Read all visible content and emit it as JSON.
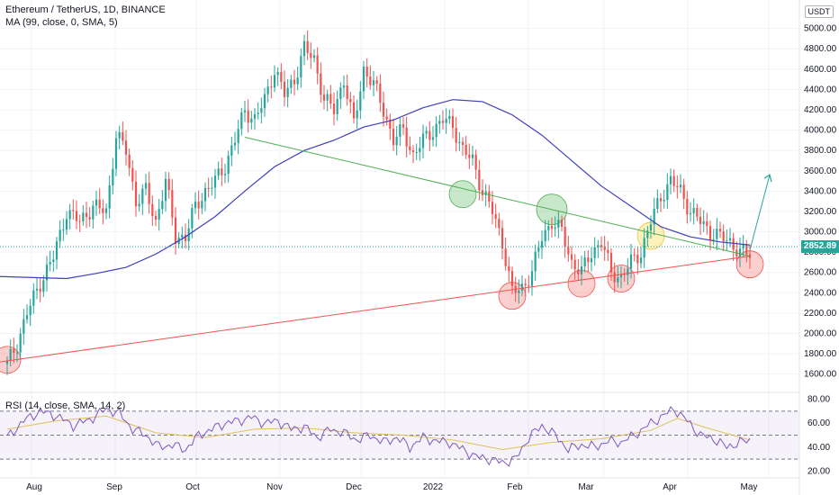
{
  "header": {
    "title": "Ethereum / TetherUS, 1D, BINANCE",
    "indicator": "MA (99, close, 0, SMA, 5)"
  },
  "rsi_header": "RSI (14, close, SMA, 14, 2)",
  "currency_badge": "USDT",
  "last_price": "2852.89",
  "colors": {
    "up": "#26a69a",
    "down": "#ef5350",
    "ma": "#3f3fbf",
    "support": "#ef5350",
    "resistance": "#4caf50",
    "projection": "#26a69a",
    "rsi": "#7e57c2",
    "rsi_ma": "#e0c05a"
  },
  "chart_data": [
    {
      "type": "candlestick",
      "title": "Ethereum / TetherUS, 1D, BINANCE",
      "x_ticks": [
        "Aug",
        "Sep",
        "Oct",
        "Nov",
        "Dec",
        "2022",
        "Feb",
        "Mar",
        "Apr",
        "May"
      ],
      "y_ticks": [
        "1600.00",
        "1800.00",
        "2000.00",
        "2200.00",
        "2400.00",
        "2600.00",
        "2800.00",
        "3000.00",
        "3200.00",
        "3400.00",
        "3600.00",
        "3800.00",
        "4000.00",
        "4200.00",
        "4400.00",
        "4600.00",
        "4800.00",
        "5000.00"
      ],
      "ylim": [
        1420,
        5280
      ],
      "close_path": [
        [
          0,
          1700
        ],
        [
          3,
          1900
        ],
        [
          6,
          2200
        ],
        [
          10,
          2500
        ],
        [
          14,
          2750
        ],
        [
          18,
          3200
        ],
        [
          22,
          3100
        ],
        [
          26,
          3250
        ],
        [
          30,
          3200
        ],
        [
          33,
          3950
        ],
        [
          36,
          3800
        ],
        [
          39,
          3300
        ],
        [
          42,
          3400
        ],
        [
          45,
          3100
        ],
        [
          48,
          3500
        ],
        [
          51,
          2950
        ],
        [
          54,
          2950
        ],
        [
          57,
          3250
        ],
        [
          60,
          3400
        ],
        [
          63,
          3500
        ],
        [
          66,
          3650
        ],
        [
          69,
          3900
        ],
        [
          72,
          4200
        ],
        [
          75,
          4100
        ],
        [
          78,
          4300
        ],
        [
          81,
          4600
        ],
        [
          84,
          4350
        ],
        [
          87,
          4500
        ],
        [
          90,
          4800
        ],
        [
          93,
          4700
        ],
        [
          96,
          4300
        ],
        [
          99,
          4200
        ],
        [
          102,
          4500
        ],
        [
          105,
          4050
        ],
        [
          108,
          4600
        ],
        [
          111,
          4450
        ],
        [
          114,
          4200
        ],
        [
          117,
          3900
        ],
        [
          120,
          4000
        ],
        [
          123,
          3750
        ],
        [
          126,
          3900
        ],
        [
          129,
          4000
        ],
        [
          132,
          4100
        ],
        [
          135,
          4050
        ],
        [
          138,
          3800
        ],
        [
          141,
          3700
        ],
        [
          144,
          3400
        ],
        [
          147,
          3200
        ],
        [
          150,
          2900
        ],
        [
          153,
          2400
        ],
        [
          156,
          2450
        ],
        [
          159,
          2600
        ],
        [
          162,
          2950
        ],
        [
          165,
          3100
        ],
        [
          168,
          3000
        ],
        [
          171,
          2700
        ],
        [
          174,
          2600
        ],
        [
          177,
          2800
        ],
        [
          180,
          2900
        ],
        [
          183,
          2600
        ],
        [
          186,
          2550
        ],
        [
          189,
          2700
        ],
        [
          192,
          2800
        ],
        [
          195,
          3100
        ],
        [
          198,
          3350
        ],
        [
          201,
          3500
        ],
        [
          204,
          3400
        ],
        [
          207,
          3200
        ],
        [
          210,
          3100
        ],
        [
          213,
          3000
        ],
        [
          216,
          2950
        ],
        [
          219,
          2900
        ],
        [
          222,
          2800
        ],
        [
          225,
          2780
        ]
      ],
      "ma_path": [
        [
          0,
          2560
        ],
        [
          18,
          2540
        ],
        [
          27,
          2590
        ],
        [
          36,
          2650
        ],
        [
          45,
          2780
        ],
        [
          54,
          2950
        ],
        [
          63,
          3150
        ],
        [
          72,
          3400
        ],
        [
          81,
          3640
        ],
        [
          90,
          3800
        ],
        [
          99,
          3900
        ],
        [
          108,
          4030
        ],
        [
          117,
          4100
        ],
        [
          126,
          4220
        ],
        [
          135,
          4300
        ],
        [
          144,
          4280
        ],
        [
          153,
          4150
        ],
        [
          162,
          3950
        ],
        [
          171,
          3700
        ],
        [
          180,
          3450
        ],
        [
          189,
          3250
        ],
        [
          198,
          3050
        ],
        [
          207,
          2950
        ],
        [
          216,
          2900
        ],
        [
          225,
          2870
        ]
      ],
      "trendlines": [
        {
          "name": "support",
          "from": [
            0,
            1720
          ],
          "to": [
            225,
            2760
          ]
        },
        {
          "name": "resistance",
          "from": [
            72,
            3930
          ],
          "to": [
            225,
            2760
          ]
        },
        {
          "name": "projection",
          "from": [
            225,
            2820
          ],
          "to": [
            231,
            3560
          ]
        }
      ],
      "markers": [
        {
          "day": 0,
          "price": 1740,
          "color": "red"
        },
        {
          "day": 153,
          "price": 2370,
          "color": "red"
        },
        {
          "day": 138,
          "price": 3370,
          "color": "green"
        },
        {
          "day": 165,
          "price": 3220,
          "color": "green"
        },
        {
          "day": 174,
          "price": 2490,
          "color": "red"
        },
        {
          "day": 186,
          "price": 2540,
          "color": "red"
        },
        {
          "day": 195,
          "price": 2960,
          "color": "yellow"
        },
        {
          "day": 225,
          "price": 2680,
          "color": "red"
        }
      ],
      "last_price": 2852.89
    },
    {
      "type": "line",
      "title": "RSI (14, close, SMA, 14, 2)",
      "y_ticks": [
        "20.00",
        "40.00",
        "60.00",
        "80.00"
      ],
      "ylim": [
        15,
        85
      ],
      "bands": [
        30,
        50,
        70
      ],
      "rsi_path": [
        [
          0,
          48
        ],
        [
          5,
          62
        ],
        [
          10,
          70
        ],
        [
          15,
          66
        ],
        [
          20,
          58
        ],
        [
          25,
          63
        ],
        [
          30,
          72
        ],
        [
          34,
          68
        ],
        [
          38,
          55
        ],
        [
          42,
          50
        ],
        [
          46,
          40
        ],
        [
          50,
          42
        ],
        [
          54,
          38
        ],
        [
          58,
          50
        ],
        [
          62,
          55
        ],
        [
          66,
          60
        ],
        [
          70,
          62
        ],
        [
          74,
          65
        ],
        [
          78,
          60
        ],
        [
          82,
          62
        ],
        [
          86,
          55
        ],
        [
          90,
          57
        ],
        [
          94,
          48
        ],
        [
          98,
          55
        ],
        [
          102,
          52
        ],
        [
          106,
          46
        ],
        [
          110,
          50
        ],
        [
          114,
          44
        ],
        [
          118,
          48
        ],
        [
          122,
          40
        ],
        [
          126,
          48
        ],
        [
          130,
          45
        ],
        [
          134,
          44
        ],
        [
          138,
          38
        ],
        [
          142,
          32
        ],
        [
          146,
          30
        ],
        [
          150,
          27
        ],
        [
          154,
          30
        ],
        [
          158,
          48
        ],
        [
          162,
          58
        ],
        [
          166,
          50
        ],
        [
          170,
          38
        ],
        [
          174,
          42
        ],
        [
          178,
          40
        ],
        [
          182,
          45
        ],
        [
          186,
          44
        ],
        [
          190,
          50
        ],
        [
          194,
          58
        ],
        [
          198,
          65
        ],
        [
          202,
          72
        ],
        [
          206,
          62
        ],
        [
          210,
          50
        ],
        [
          214,
          47
        ],
        [
          218,
          40
        ],
        [
          222,
          44
        ],
        [
          225,
          46
        ]
      ],
      "rsi_ma_path": [
        [
          0,
          55
        ],
        [
          15,
          62
        ],
        [
          30,
          66
        ],
        [
          45,
          52
        ],
        [
          60,
          48
        ],
        [
          75,
          55
        ],
        [
          90,
          56
        ],
        [
          105,
          52
        ],
        [
          120,
          50
        ],
        [
          135,
          46
        ],
        [
          150,
          38
        ],
        [
          165,
          44
        ],
        [
          180,
          47
        ],
        [
          195,
          54
        ],
        [
          203,
          64
        ],
        [
          212,
          56
        ],
        [
          225,
          46
        ]
      ]
    }
  ]
}
